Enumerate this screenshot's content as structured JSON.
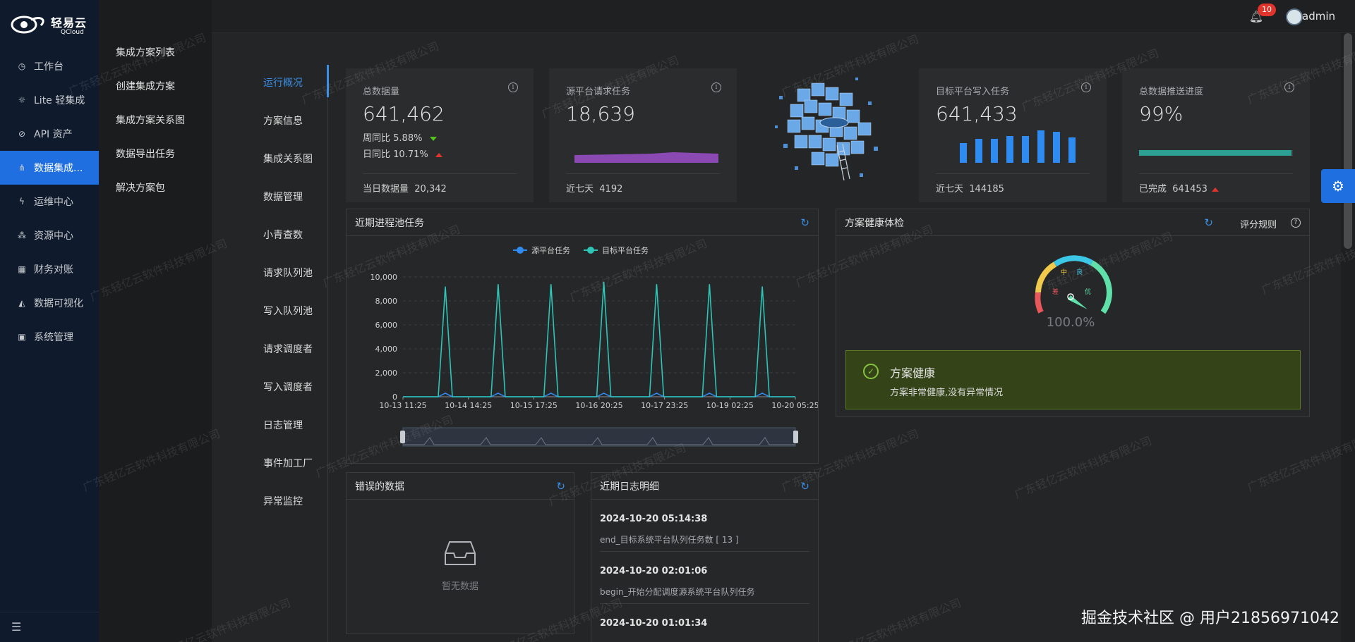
{
  "brand": {
    "name_cn": "轻易云",
    "name_en": "QCloud"
  },
  "sidebar": {
    "items": [
      {
        "label": "工作台",
        "icon": "clock-icon"
      },
      {
        "label": "Lite 轻集成",
        "icon": "bulb-icon"
      },
      {
        "label": "API 资产",
        "icon": "compass-icon"
      },
      {
        "label": "数据集成...",
        "icon": "nodes-icon",
        "active": true
      },
      {
        "label": "运维中心",
        "icon": "bolt-icon"
      },
      {
        "label": "资源中心",
        "icon": "cluster-icon"
      },
      {
        "label": "财务对账",
        "icon": "calculator-icon"
      },
      {
        "label": "数据可视化",
        "icon": "area-chart-icon"
      },
      {
        "label": "系统管理",
        "icon": "grid-icon"
      }
    ]
  },
  "submenu": {
    "items": [
      "集成方案列表",
      "创建集成方案",
      "集成方案关系图",
      "数据导出任务",
      "解决方案包"
    ]
  },
  "topbar": {
    "notification_count": "10",
    "username": "admin"
  },
  "tabs": [
    "运行概况",
    "方案信息",
    "集成关系图",
    "数据管理",
    "小青查数",
    "请求队列池",
    "写入队列池",
    "请求调度者",
    "写入调度者",
    "日志管理",
    "事件加工厂",
    "异常监控"
  ],
  "stats": {
    "total": {
      "title": "总数据量",
      "value": "641,462",
      "wow_label": "周同比",
      "wow_value": "5.88%",
      "dod_label": "日同比",
      "dod_value": "10.71%",
      "foot_label": "当日数据量",
      "foot_value": "20,342"
    },
    "source": {
      "title": "源平台请求任务",
      "value": "18,639",
      "foot_label": "近七天",
      "foot_value": "4192"
    },
    "target": {
      "title": "目标平台写入任务",
      "value": "641,433",
      "foot_label": "近七天",
      "foot_value": "144185",
      "bar_values": [
        28,
        34,
        34,
        38,
        38,
        46,
        44,
        36
      ]
    },
    "progress": {
      "title": "总数据推送进度",
      "value": "99%",
      "percent": 99,
      "foot_label": "已完成",
      "foot_value": "641453"
    }
  },
  "process_panel": {
    "title": "近期进程池任务",
    "legend_source": "源平台任务",
    "legend_target": "目标平台任务"
  },
  "health_panel": {
    "title": "方案健康体检",
    "rule_label": "评分规则",
    "gauge_labels": {
      "poor": "差",
      "mid": "中",
      "good": "良",
      "excellent": "优"
    },
    "score": "100.0%",
    "result_title": "方案健康",
    "result_desc": "方案非常健康,没有异常情况"
  },
  "error_panel": {
    "title": "错误的数据",
    "empty_text": "暂无数据"
  },
  "log_panel": {
    "title": "近期日志明细",
    "items": [
      {
        "time": "2024-10-20 05:14:38",
        "desc": "end_目标系统平台队列任务数 [ 13 ]"
      },
      {
        "time": "2024-10-20 02:01:06",
        "desc": "begin_开始分配调度源系统平台队列任务"
      },
      {
        "time": "2024-10-20 01:01:34",
        "desc": ""
      }
    ]
  },
  "watermark": "广东轻亿云软件科技有限公司",
  "footer_mark": "掘金技术社区 @ 用户21856971042",
  "chart_data": {
    "type": "line",
    "title": "近期进程池任务",
    "x_ticks": [
      "10-13 11:25",
      "10-14 14:25",
      "10-15 17:25",
      "10-16 20:25",
      "10-17 23:25",
      "10-19 02:25",
      "10-20 05:25"
    ],
    "y_ticks": [
      "0",
      "2,000",
      "4,000",
      "6,000",
      "8,000",
      "10,000"
    ],
    "ylim": [
      0,
      10000
    ],
    "series": [
      {
        "name": "源平台任务",
        "color": "#2f8bf0",
        "peaks": [
          300,
          300,
          300,
          300,
          300,
          300,
          300
        ]
      },
      {
        "name": "目标平台任务",
        "color": "#2ec4b6",
        "peaks": [
          9200,
          9400,
          9400,
          9600,
          9400,
          9400,
          9200
        ]
      }
    ],
    "legend": "top-center"
  }
}
